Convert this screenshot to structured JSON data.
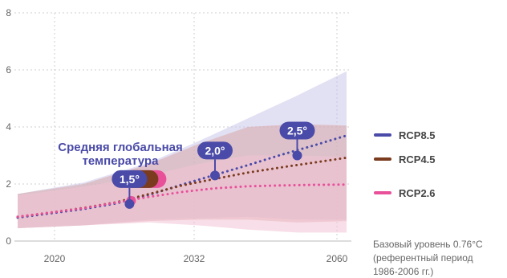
{
  "colors": {
    "rcp85": "#4a4aa8",
    "rcp45": "#7a3b1e",
    "rcp26": "#e8509a",
    "band85": "#cbc7ea",
    "band45": "#d9a7a7",
    "band26": "#f3c3d6",
    "grid": "#cfcfcf",
    "title": "#4a4aa8"
  },
  "chart_data": {
    "type": "line",
    "title": "Средняя глобальная температура",
    "title_lines": [
      "Средняя глобальная",
      "температура"
    ],
    "xlabel": "",
    "ylabel": "",
    "ylim": [
      0,
      8
    ],
    "yticks": [
      "0",
      "2",
      "4",
      "6",
      "8"
    ],
    "xticks": [
      "2020",
      "2032",
      "2060"
    ],
    "grid": true,
    "legend_position": "right",
    "series": [
      {
        "name": "RCP8.5",
        "color_key": "rcp85",
        "points": [
          [
            0,
            0.82
          ],
          [
            0.1,
            0.97
          ],
          [
            0.2,
            1.12
          ],
          [
            0.3,
            1.32
          ],
          [
            0.4,
            1.62
          ],
          [
            0.5,
            1.98
          ],
          [
            0.6,
            2.32
          ],
          [
            0.7,
            2.66
          ],
          [
            0.8,
            3.02
          ],
          [
            0.9,
            3.35
          ],
          [
            1.0,
            3.7
          ]
        ],
        "band_upper": [
          [
            0,
            1.65
          ],
          [
            0.2,
            2.05
          ],
          [
            0.4,
            2.75
          ],
          [
            0.55,
            3.5
          ],
          [
            0.7,
            4.3
          ],
          [
            0.85,
            5.1
          ],
          [
            1.0,
            5.95
          ]
        ],
        "band_lower": [
          [
            0,
            0.45
          ],
          [
            0.2,
            0.55
          ],
          [
            0.4,
            0.75
          ],
          [
            0.55,
            0.8
          ],
          [
            0.7,
            0.85
          ],
          [
            0.85,
            0.75
          ],
          [
            1.0,
            0.75
          ]
        ]
      },
      {
        "name": "RCP4.5",
        "color_key": "rcp45",
        "points": [
          [
            0,
            0.85
          ],
          [
            0.1,
            1.0
          ],
          [
            0.2,
            1.16
          ],
          [
            0.3,
            1.36
          ],
          [
            0.4,
            1.65
          ],
          [
            0.5,
            1.95
          ],
          [
            0.6,
            2.18
          ],
          [
            0.7,
            2.4
          ],
          [
            0.8,
            2.58
          ],
          [
            0.9,
            2.75
          ],
          [
            1.0,
            2.92
          ]
        ],
        "band_upper": [
          [
            0,
            1.65
          ],
          [
            0.2,
            2.0
          ],
          [
            0.4,
            2.7
          ],
          [
            0.55,
            3.4
          ],
          [
            0.7,
            4.0
          ],
          [
            0.85,
            4.1
          ],
          [
            1.0,
            4.05
          ]
        ],
        "band_lower": [
          [
            0,
            0.45
          ],
          [
            0.2,
            0.55
          ],
          [
            0.4,
            0.7
          ],
          [
            0.55,
            0.75
          ],
          [
            0.7,
            0.75
          ],
          [
            0.85,
            0.65
          ],
          [
            1.0,
            0.7
          ]
        ]
      },
      {
        "name": "RCP2.6",
        "color_key": "rcp26",
        "points": [
          [
            0,
            0.85
          ],
          [
            0.1,
            1.0
          ],
          [
            0.2,
            1.15
          ],
          [
            0.3,
            1.35
          ],
          [
            0.4,
            1.55
          ],
          [
            0.5,
            1.72
          ],
          [
            0.6,
            1.85
          ],
          [
            0.7,
            1.92
          ],
          [
            0.8,
            1.95
          ],
          [
            0.9,
            1.97
          ],
          [
            1.0,
            1.98
          ]
        ],
        "band_upper": [
          [
            0,
            1.6
          ],
          [
            0.2,
            1.9
          ],
          [
            0.4,
            2.3
          ],
          [
            0.55,
            2.7
          ],
          [
            0.7,
            3.0
          ],
          [
            0.85,
            3.0
          ],
          [
            1.0,
            2.95
          ]
        ],
        "band_lower": [
          [
            0,
            0.45
          ],
          [
            0.2,
            0.55
          ],
          [
            0.4,
            0.65
          ],
          [
            0.55,
            0.55
          ],
          [
            0.7,
            0.4
          ],
          [
            0.85,
            0.3
          ],
          [
            1.0,
            0.3
          ]
        ]
      }
    ],
    "markers": [
      {
        "label": "1,5°",
        "x": 0.34,
        "y": 1.3,
        "multi": true
      },
      {
        "label": "2,0°",
        "x": 0.6,
        "y": 2.3,
        "multi": false
      },
      {
        "label": "2,5°",
        "x": 0.85,
        "y": 3.0,
        "multi": false
      }
    ],
    "annotation": [
      "Базовый уровень 0.76°C",
      "(референтный период",
      "1986-2006 гг.)"
    ]
  }
}
